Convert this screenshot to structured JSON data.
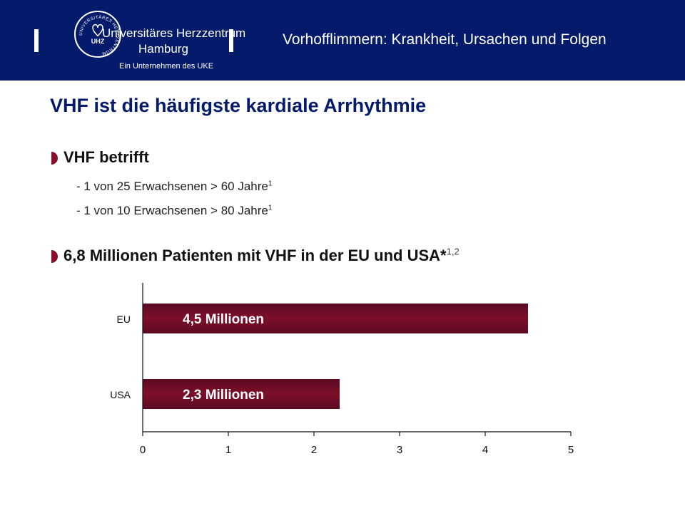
{
  "header": {
    "logo_text": {
      "line1": "Universitäres Herzzentrum",
      "line2": "Hamburg",
      "line3": "Ein Unternehmen des UKE",
      "seal_ring": "UNIVERSITÄRES HERZZENTRUM",
      "seal_center": "UHZ"
    },
    "deck_title": "Vorhofflimmern: Krankheit, Ursachen und Folgen",
    "background_color": "#041a6a"
  },
  "slide": {
    "title": "VHF ist die häufigste kardiale Arrhythmie",
    "bullet1": {
      "text": "VHF betrifft",
      "items": [
        {
          "text": "- 1 von 25 Erwachsenen > 60 Jahre",
          "ref": "1"
        },
        {
          "text": "- 1 von 10 Erwachsenen > 80 Jahre",
          "ref": "1"
        }
      ]
    },
    "bullet2": {
      "text": "6,8 Millionen Patienten mit VHF in der EU und USA*",
      "ref": "1,2"
    },
    "accent_color": "#8a0e2a"
  },
  "chart_data": {
    "type": "bar",
    "orientation": "horizontal",
    "categories": [
      "EU",
      "USA"
    ],
    "values": [
      4.5,
      2.3
    ],
    "data_labels": [
      "4,5 Millionen",
      "2,3 Millionen"
    ],
    "xlim": [
      0,
      5
    ],
    "xticks": [
      "0",
      "1",
      "2",
      "3",
      "4",
      "5"
    ],
    "grid": false,
    "bar_color": "#7d0f2b"
  }
}
